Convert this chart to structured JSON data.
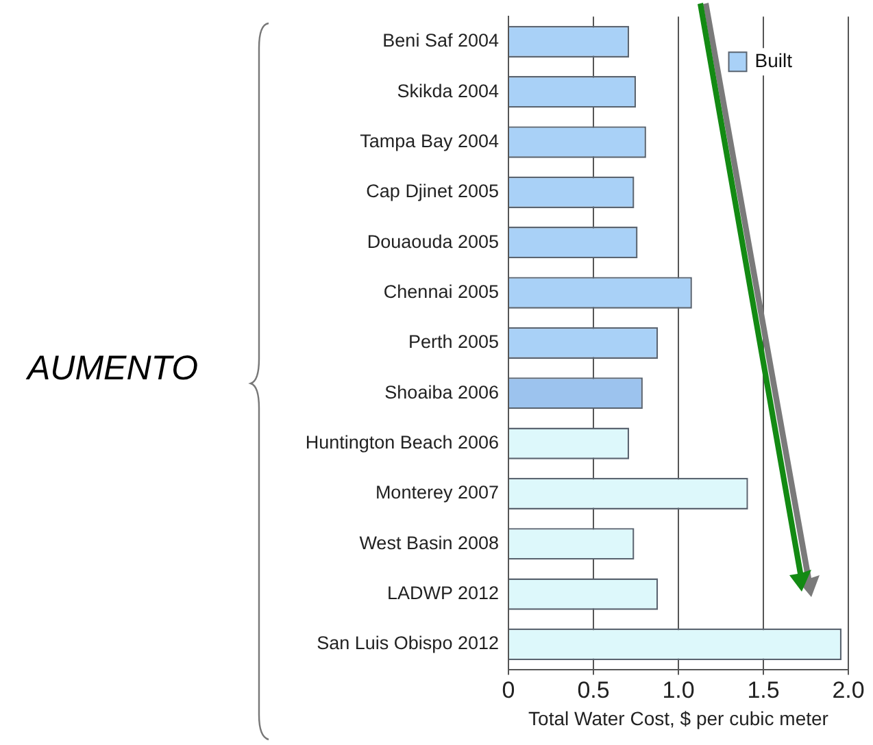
{
  "chart_data": {
    "type": "bar",
    "orientation": "horizontal",
    "xlabel": "Total Water Cost, $ per cubic meter",
    "categories": [
      "Beni Saf 2004",
      "Skikda 2004",
      "Tampa Bay 2004",
      "Cap Djinet 2005",
      "Douaouda 2005",
      "Chennai 2005",
      "Perth 2005",
      "Shoaiba 2006",
      "Huntington Beach 2006",
      "Monterey 2007",
      "West Basin 2008",
      "LADWP 2012",
      "San Luis Obispo 2012"
    ],
    "series": [
      {
        "name": "Built",
        "color": "#a9d1f7",
        "colors": [
          "#a9d1f7",
          "#a9d1f7",
          "#a9d1f7",
          "#a9d1f7",
          "#a9d1f7",
          "#a9d1f7",
          "#a9d1f7",
          "#9cc3ee",
          "#ddf8fb",
          "#ddf8fb",
          "#ddf8fb",
          "#ddf8fb",
          "#ddf8fb"
        ],
        "values": [
          0.71,
          0.75,
          0.81,
          0.74,
          0.76,
          1.08,
          0.88,
          0.79,
          0.71,
          1.41,
          0.74,
          0.88,
          1.96
        ]
      }
    ],
    "xlim": [
      0,
      2
    ],
    "xticks": [
      0,
      0.5,
      {
        "value": 1,
        "label": "1.0"
      },
      1.5,
      {
        "value": 2,
        "label": "2.0"
      }
    ],
    "grid": "x",
    "legend": "top right",
    "annotations": [
      "AUMENTO"
    ]
  }
}
